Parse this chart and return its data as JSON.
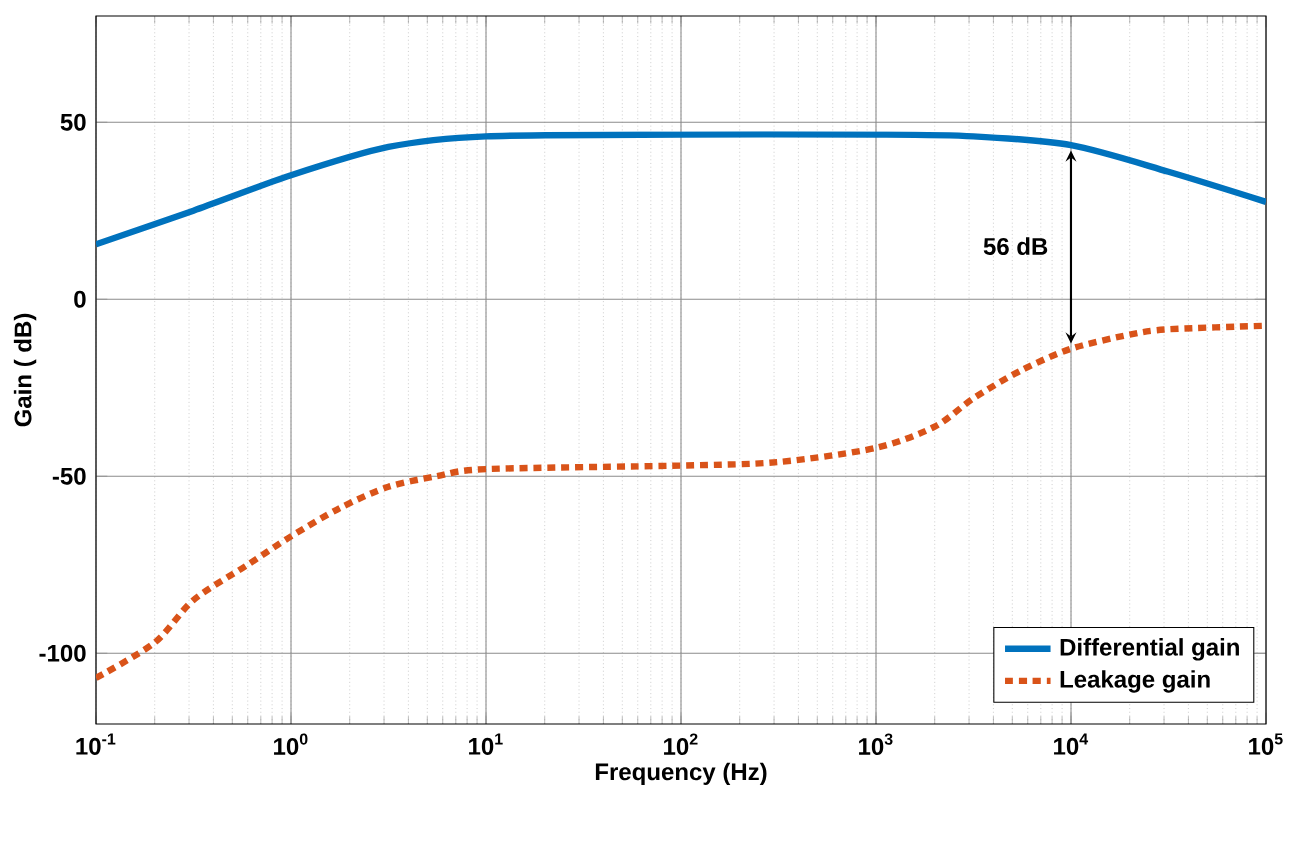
{
  "chart_data": {
    "type": "line",
    "xlabel": "Frequency (Hz)",
    "ylabel": "Gain ( dB)",
    "log": "x",
    "grid": true,
    "legend": "bottom right",
    "xlim": [
      0.1,
      100000
    ],
    "ylim": [
      -120,
      80
    ],
    "xticks": [
      {
        "value": 0.1,
        "label": "10$^{-1}$"
      },
      {
        "value": 1,
        "label": "10$^{0}$"
      },
      {
        "value": 10,
        "label": "10$^{1}$"
      },
      {
        "value": 100,
        "label": "10$^{2}$"
      },
      {
        "value": 1000,
        "label": "10$^{3}$"
      },
      {
        "value": 10000,
        "label": "10$^{4}$"
      },
      {
        "value": 100000,
        "label": "10$^{5}$"
      }
    ],
    "yticks": [
      -100,
      -50,
      0,
      50
    ],
    "series": [
      {
        "name": "Differential gain",
        "color": "#0072bd",
        "line_style": "solid",
        "x": [
          0.1,
          0.316,
          1,
          3.16,
          10,
          100,
          1000,
          3160,
          10000,
          31600,
          100000
        ],
        "values": [
          15.5,
          25,
          35,
          43,
          46,
          46.5,
          46.5,
          46,
          43.5,
          36,
          27.5
        ]
      },
      {
        "name": "Leakage gain",
        "color": "#d95319",
        "line_style": "dotted",
        "x": [
          0.1,
          0.2,
          0.316,
          0.6,
          1,
          1.78,
          3.16,
          5.6,
          10,
          100,
          316,
          1000,
          2000,
          3160,
          5600,
          10000,
          20000,
          31600,
          100000
        ],
        "values": [
          -107,
          -97,
          -85,
          -75,
          -67,
          -59,
          -53,
          -50,
          -48,
          -47,
          -46,
          -42,
          -36,
          -28,
          -20,
          -14,
          -10,
          -8.5,
          -7.5
        ]
      }
    ],
    "annotations": [
      "56 dB"
    ]
  }
}
